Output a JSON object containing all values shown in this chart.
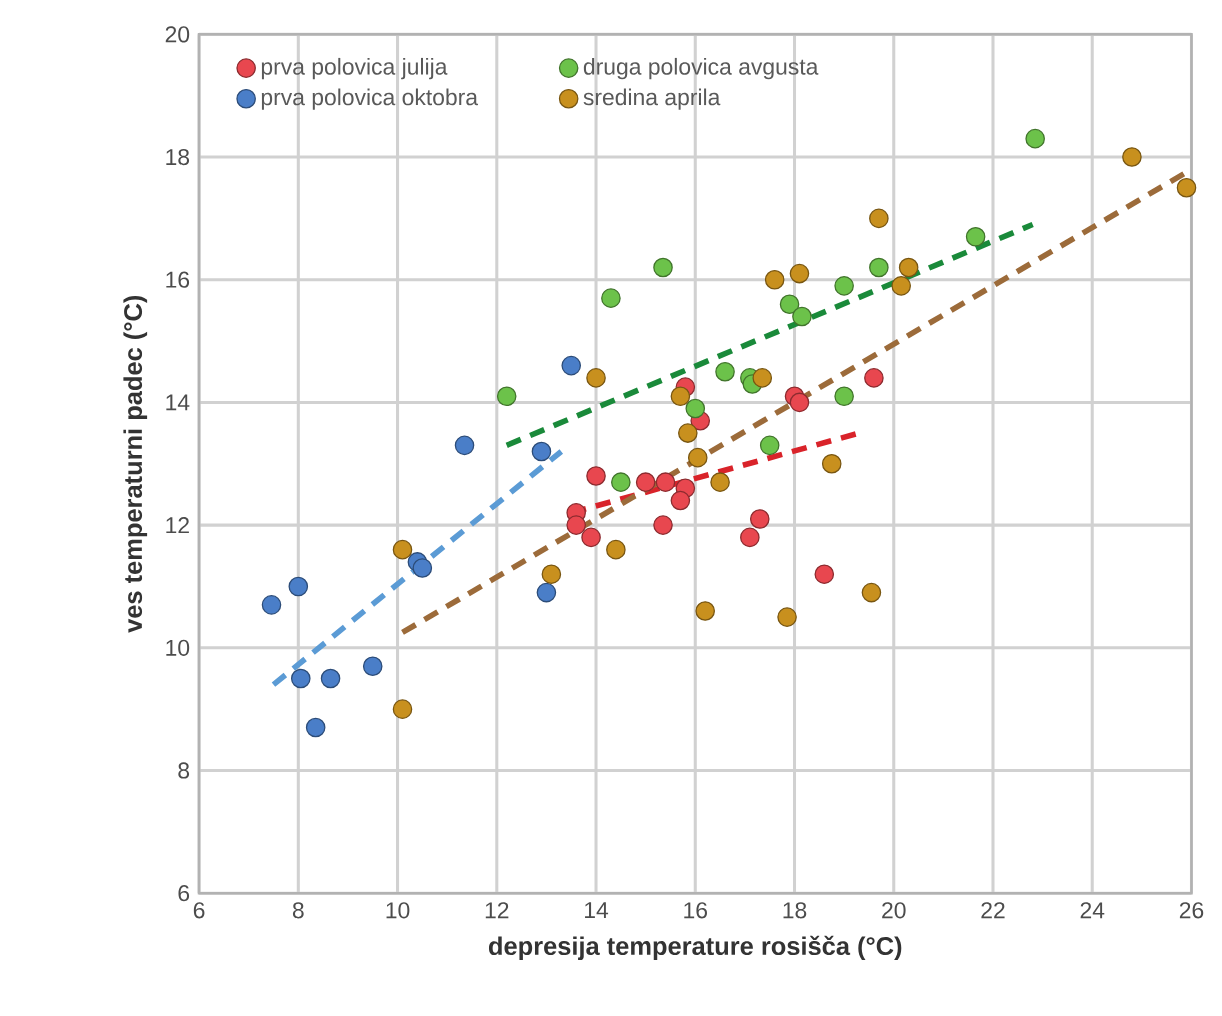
{
  "chart_data": {
    "type": "scatter",
    "xlabel": "depresija temperature rosišča (°C)",
    "ylabel": "ves temperaturni padec (°C)",
    "xlim": [
      6,
      26
    ],
    "ylim": [
      6,
      20
    ],
    "xticks": [
      6,
      8,
      10,
      12,
      14,
      16,
      18,
      20,
      22,
      24,
      26
    ],
    "yticks": [
      6,
      8,
      10,
      12,
      14,
      16,
      18,
      20
    ],
    "grid": true,
    "legend": "top left",
    "series": [
      {
        "name": "prva polovica julija",
        "marker": "circle",
        "color": "#e8474f",
        "x": [
          15.8,
          16.1,
          14.0,
          13.6,
          13.6,
          13.9,
          15.0,
          15.4,
          15.8,
          15.7,
          15.35,
          17.3,
          17.1,
          18.0,
          18.1,
          19.6,
          18.6
        ],
        "values": [
          14.25,
          13.7,
          12.8,
          12.2,
          12.0,
          11.8,
          12.7,
          12.7,
          12.6,
          12.4,
          12.0,
          12.1,
          11.8,
          14.1,
          14.0,
          14.4,
          11.2
        ]
      },
      {
        "name": "druga polovica avgusta",
        "marker": "circle",
        "color": "#6cc24a",
        "x": [
          15.35,
          14.3,
          16.6,
          17.1,
          17.15,
          16.0,
          14.5,
          17.5,
          19.0,
          17.9,
          18.15,
          19.0,
          19.7,
          22.85,
          21.65,
          12.2
        ],
        "values": [
          16.2,
          15.7,
          14.5,
          14.4,
          14.3,
          13.9,
          12.7,
          13.3,
          14.1,
          15.6,
          15.4,
          15.9,
          16.2,
          18.3,
          16.7,
          14.1
        ]
      },
      {
        "name": "prva polovica oktobra",
        "marker": "circle",
        "color": "#4a7ec8",
        "x": [
          7.46,
          8.0,
          8.05,
          8.65,
          8.35,
          9.5,
          10.4,
          10.5,
          11.35,
          12.9,
          13.0,
          13.5
        ],
        "values": [
          10.7,
          11.0,
          9.5,
          9.5,
          8.7,
          9.7,
          11.4,
          11.3,
          13.3,
          13.2,
          10.9,
          14.6
        ]
      },
      {
        "name": "sredina aprila",
        "marker": "circle",
        "color": "#c8901e",
        "x": [
          17.6,
          18.1,
          14.0,
          15.7,
          17.35,
          15.85,
          16.05,
          16.5,
          18.75,
          14.4,
          13.1,
          16.2,
          17.85,
          19.55,
          19.7,
          20.3,
          20.15,
          24.8,
          25.9,
          10.1,
          10.1
        ],
        "values": [
          16.0,
          16.1,
          14.4,
          14.1,
          14.4,
          13.5,
          13.1,
          12.7,
          13.0,
          11.6,
          11.2,
          10.6,
          10.5,
          10.9,
          17.0,
          16.2,
          15.9,
          18.0,
          17.5,
          11.6,
          9.0
        ]
      },
      {
        "type": "line",
        "marker": "none",
        "line_style": "dashed",
        "color": "#d9232a",
        "x": [
          13.5,
          19.3
        ],
        "values": [
          12.2,
          13.5
        ]
      },
      {
        "type": "line",
        "marker": "none",
        "line_style": "dashed",
        "color": "#1a8a3a",
        "x": [
          12.2,
          22.8
        ],
        "values": [
          13.3,
          16.9
        ]
      },
      {
        "type": "line",
        "marker": "none",
        "line_style": "dashed",
        "color": "#5b9bd5",
        "x": [
          7.5,
          13.3
        ],
        "values": [
          9.4,
          13.2
        ]
      },
      {
        "type": "line",
        "marker": "none",
        "line_style": "dashed",
        "color": "#9c6b3a",
        "x": [
          10.1,
          26.0
        ],
        "values": [
          10.25,
          17.8
        ]
      }
    ]
  }
}
